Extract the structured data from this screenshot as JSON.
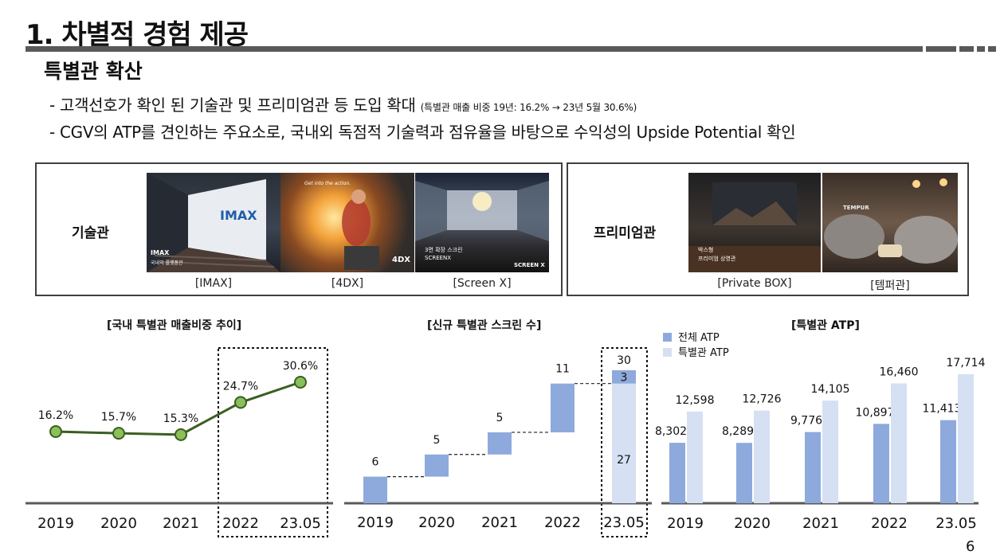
{
  "header": {
    "title": "1. 차별적 경험 제공",
    "subtitle": "특별관 확산"
  },
  "bullets": [
    {
      "text": "- 고객선호가 확인 된 기술관 및 프리미엄관 등 도입 확대 ",
      "note": "(특별관 매출 비중 19년: 16.2% → 23년 5월 30.6%)"
    },
    {
      "text": "- CGV의 ATP를 견인하는 주요소로, 국내외 독점적 기술력과 점유율을 바탕으로 수익성의 Upside Potential 확인",
      "note": ""
    }
  ],
  "tech_box": {
    "label": "기술관",
    "images": [
      {
        "caption": "[IMAX]",
        "screen_text": "IMAX",
        "overlay": "IMAX",
        "overlay_sub": "국내외 플랫폼관",
        "icon": "imax-theater-photo"
      },
      {
        "caption": "[4DX]",
        "screen_text": "Get into the action.",
        "overlay": "4DX",
        "icon": "4dx-theater-photo"
      },
      {
        "caption": "[Screen X]",
        "overlay": "3면 확장 스크린",
        "overlay_sub": "SCREENX",
        "badge": "SCREEN X",
        "icon": "screenx-theater-photo"
      }
    ]
  },
  "premium_box": {
    "label": "프리미엄관",
    "images": [
      {
        "caption": "[Private BOX]",
        "overlay": "박스형",
        "overlay_sub": "프리미엄 상영관",
        "icon": "private-box-photo"
      },
      {
        "caption": "[템퍼관]",
        "overlay": "TEMPUR",
        "icon": "tempur-theater-photo"
      }
    ]
  },
  "colors": {
    "line": "#3b5e22",
    "marker_fill": "#8bbf5a",
    "bar_dark": "#8ea9dc",
    "bar_light": "#d6e0f3",
    "axis": "#595959"
  },
  "chart_data": [
    {
      "type": "line",
      "title": "[국내 특별관 매출비중 추이]",
      "categories": [
        "2019",
        "2020",
        "2021",
        "2022",
        "23.05"
      ],
      "values": [
        16.2,
        15.7,
        15.3,
        24.7,
        30.6
      ],
      "value_labels": [
        "16.2%",
        "15.7%",
        "15.3%",
        "24.7%",
        "30.6%"
      ],
      "highlight": [
        "2022",
        "23.05"
      ],
      "grid": false
    },
    {
      "type": "bar",
      "subtype": "waterfall",
      "title": "[신규 특별관 스크린 수]",
      "categories": [
        "2019",
        "2020",
        "2021",
        "2022",
        "23.05"
      ],
      "increments": [
        6,
        5,
        5,
        11,
        3
      ],
      "cumulative": [
        6,
        11,
        16,
        27,
        30
      ],
      "labels": [
        "6",
        "5",
        "5",
        "11",
        "30"
      ],
      "last_split": {
        "base": 27,
        "base_label": "27",
        "top": 3,
        "top_label": "3"
      },
      "highlight": [
        "23.05"
      ],
      "grid": false
    },
    {
      "type": "bar",
      "title": "[특별관 ATP]",
      "categories": [
        "2019",
        "2020",
        "2021",
        "2022",
        "23.05"
      ],
      "series": [
        {
          "name": "전체 ATP",
          "values": [
            8302,
            8289,
            9776,
            10897,
            11413
          ],
          "labels": [
            "8,302",
            "8,289",
            "9,776",
            "10,897",
            "11,413"
          ]
        },
        {
          "name": "특별관 ATP",
          "values": [
            12598,
            12726,
            14105,
            16460,
            17714
          ],
          "labels": [
            "12,598",
            "12,726",
            "14,105",
            "16,460",
            "17,714"
          ]
        }
      ],
      "legend": "top-left",
      "grid": false
    }
  ],
  "page_number": "6"
}
